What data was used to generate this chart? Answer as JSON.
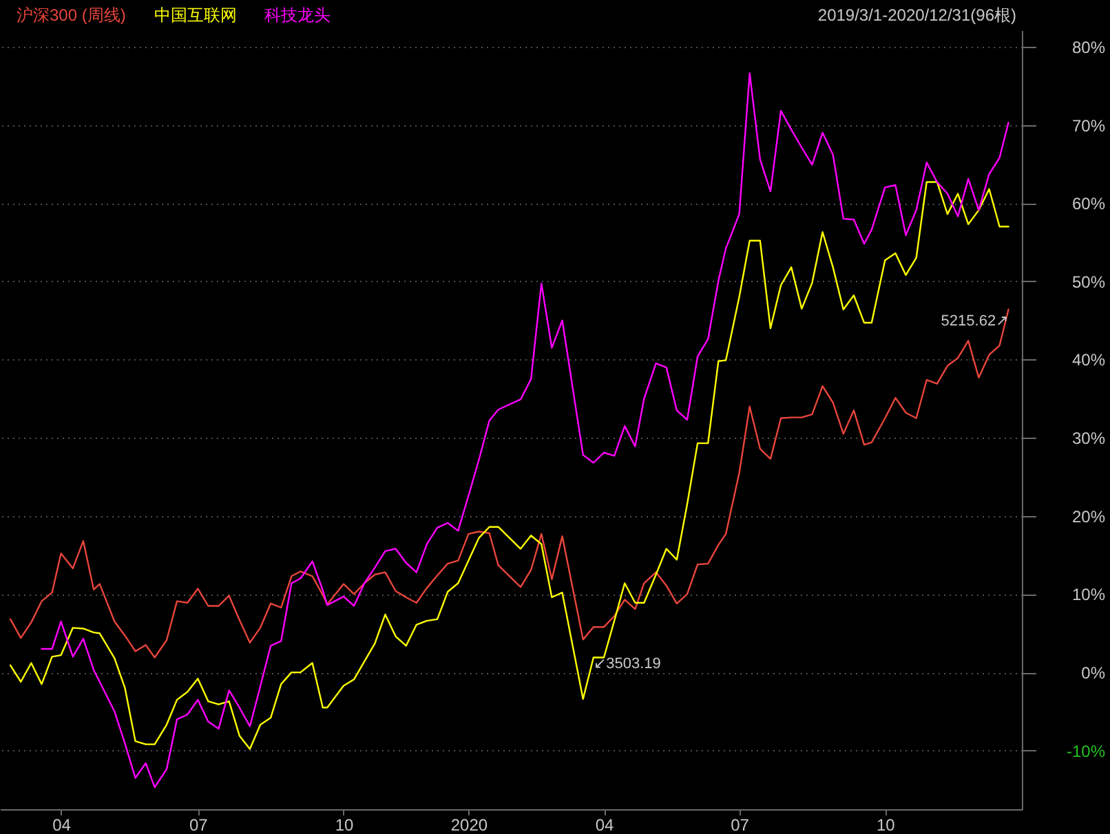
{
  "chart_data": {
    "type": "line",
    "title": "2019/3/1-2020/12/31(96根)",
    "legend": "top left",
    "grid": "y",
    "x": [
      "2019-03-01",
      "2019-03-08",
      "2019-03-15",
      "2019-03-22",
      "2019-03-29",
      "2019-04-04",
      "2019-04-12",
      "2019-04-19",
      "2019-04-26",
      "2019-04-30",
      "2019-05-10",
      "2019-05-17",
      "2019-05-24",
      "2019-05-31",
      "2019-06-06",
      "2019-06-14",
      "2019-06-21",
      "2019-06-28",
      "2019-07-05",
      "2019-07-12",
      "2019-07-19",
      "2019-07-26",
      "2019-08-02",
      "2019-08-09",
      "2019-08-16",
      "2019-08-23",
      "2019-08-30",
      "2019-09-06",
      "2019-09-12",
      "2019-09-20",
      "2019-09-27",
      "2019-09-30",
      "2019-10-11",
      "2019-10-18",
      "2019-10-25",
      "2019-11-01",
      "2019-11-08",
      "2019-11-15",
      "2019-11-22",
      "2019-11-29",
      "2019-12-06",
      "2019-12-13",
      "2019-12-20",
      "2019-12-27",
      "2020-01-03",
      "2020-01-10",
      "2020-01-17",
      "2020-01-23",
      "2020-02-07",
      "2020-02-14",
      "2020-02-21",
      "2020-02-28",
      "2020-03-06",
      "2020-03-13",
      "2020-03-20",
      "2020-03-27",
      "2020-04-03",
      "2020-04-10",
      "2020-04-17",
      "2020-04-24",
      "2020-04-30",
      "2020-05-08",
      "2020-05-15",
      "2020-05-22",
      "2020-05-29",
      "2020-06-05",
      "2020-06-12",
      "2020-06-19",
      "2020-06-24",
      "2020-07-03",
      "2020-07-10",
      "2020-07-17",
      "2020-07-24",
      "2020-07-31",
      "2020-08-07",
      "2020-08-14",
      "2020-08-21",
      "2020-08-28",
      "2020-09-04",
      "2020-09-11",
      "2020-09-18",
      "2020-09-25",
      "2020-09-30",
      "2020-10-09",
      "2020-10-16",
      "2020-10-23",
      "2020-10-30",
      "2020-11-06",
      "2020-11-13",
      "2020-11-20",
      "2020-11-27",
      "2020-12-04",
      "2020-12-11",
      "2020-12-18",
      "2020-12-25",
      "2020-12-31"
    ],
    "xlim": [
      "2019-02-22",
      "2021-01-09"
    ],
    "xticks": [
      {
        "value": "2019-04-04",
        "label": "04"
      },
      {
        "value": "2019-07-05",
        "label": "07"
      },
      {
        "value": "2019-10-11",
        "label": "10"
      },
      {
        "value": "2020-01-03",
        "label": "2020"
      },
      {
        "value": "2020-04-03",
        "label": "04"
      },
      {
        "value": "2020-07-03",
        "label": "07"
      },
      {
        "value": "2020-10-09",
        "label": "10"
      }
    ],
    "ylim": [
      -17.5,
      82.1
    ],
    "yticks": [
      {
        "value": -10,
        "label": "-10%"
      },
      {
        "value": 0,
        "label": "0%"
      },
      {
        "value": 10,
        "label": "10%"
      },
      {
        "value": 20,
        "label": "20%"
      },
      {
        "value": 30,
        "label": "30%"
      },
      {
        "value": 40,
        "label": "40%"
      },
      {
        "value": 50,
        "label": "50%"
      },
      {
        "value": 60,
        "label": "60%"
      },
      {
        "value": 70,
        "label": "70%"
      },
      {
        "value": 80,
        "label": "80%"
      }
    ],
    "series": [
      {
        "name": "沪深300 (周线)",
        "color": "#e8453c",
        "values": [
          6.8,
          4.4,
          6.4,
          9.1,
          10.2,
          15.2,
          13.3,
          16.8,
          10.6,
          11.3,
          6.5,
          4.7,
          2.7,
          3.5,
          1.9,
          4.1,
          9.1,
          8.9,
          10.7,
          8.5,
          8.5,
          9.8,
          6.7,
          3.8,
          5.7,
          8.8,
          8.3,
          12.3,
          12.9,
          12.3,
          9.9,
          8.7,
          11.3,
          10.0,
          11.4,
          12.5,
          12.8,
          10.4,
          9.6,
          8.9,
          10.8,
          12.4,
          13.9,
          14.3,
          17.7,
          18.0,
          17.8,
          13.7,
          10.9,
          13.1,
          17.7,
          11.9,
          17.4,
          10.8,
          4.2,
          5.8,
          5.8,
          7.2,
          9.3,
          8.1,
          11.4,
          12.8,
          11.1,
          8.8,
          10.0,
          13.8,
          13.9,
          16.3,
          17.7,
          25.5,
          34.0,
          28.6,
          27.3,
          32.5,
          32.6,
          32.6,
          33.0,
          36.6,
          34.5,
          30.5,
          33.5,
          29.1,
          29.4,
          32.5,
          35.1,
          33.2,
          32.5,
          37.4,
          36.9,
          39.2,
          40.2,
          42.4,
          37.7,
          40.6,
          41.8,
          46.4
        ]
      },
      {
        "name": "中国互联网",
        "color": "#ffff00",
        "values": [
          0.9,
          -1.2,
          1.2,
          -1.5,
          2.0,
          2.2,
          5.7,
          5.6,
          5.1,
          5.0,
          1.8,
          -2.0,
          -8.8,
          -9.2,
          -9.2,
          -6.7,
          -3.5,
          -2.5,
          -0.8,
          -3.7,
          -4.1,
          -3.7,
          -8.1,
          -9.8,
          -6.7,
          -5.8,
          -1.5,
          0.0,
          0.0,
          1.2,
          -4.5,
          -4.5,
          -1.7,
          -0.9,
          1.4,
          3.7,
          7.4,
          4.6,
          3.4,
          6.1,
          6.6,
          6.8,
          10.3,
          11.4,
          14.3,
          17.2,
          18.6,
          18.6,
          15.8,
          17.5,
          16.4,
          9.6,
          10.2,
          3.4,
          -3.4,
          1.9,
          1.9,
          6.6,
          11.4,
          8.9,
          8.9,
          12.5,
          15.8,
          14.4,
          21.5,
          29.3,
          29.3,
          39.8,
          39.9,
          48.0,
          55.2,
          55.2,
          44.0,
          49.5,
          51.8,
          46.5,
          49.8,
          56.3,
          51.8,
          46.4,
          48.2,
          44.7,
          44.7,
          52.7,
          53.6,
          50.8,
          53.0,
          62.7,
          62.7,
          58.6,
          61.2,
          57.3,
          59.1,
          61.8,
          57.0,
          57.0
        ]
      },
      {
        "name": "科技龙头",
        "color": "#ff00ff",
        "values": [
          null,
          null,
          null,
          3.0,
          3.0,
          6.5,
          2.0,
          4.3,
          0.3,
          -1.2,
          -5.0,
          -9.1,
          -13.5,
          -11.6,
          -14.7,
          -12.4,
          -6.0,
          -5.4,
          -3.5,
          -6.3,
          -7.2,
          -2.3,
          -4.5,
          -6.9,
          -1.8,
          3.4,
          4.0,
          11.4,
          12.0,
          14.2,
          10.5,
          8.6,
          9.7,
          8.5,
          11.4,
          13.4,
          15.5,
          15.8,
          14.0,
          12.8,
          16.4,
          18.5,
          19.1,
          18.1,
          22.6,
          27.2,
          32.2,
          33.6,
          34.9,
          37.5,
          49.7,
          41.5,
          45.0,
          36.4,
          27.8,
          26.8,
          28.1,
          27.7,
          31.5,
          28.9,
          35.0,
          39.5,
          39.0,
          33.5,
          32.3,
          40.4,
          42.6,
          50.1,
          54.2,
          58.6,
          76.6,
          65.6,
          61.5,
          71.8,
          69.4,
          67.1,
          64.9,
          69.0,
          66.2,
          58.0,
          57.9,
          54.8,
          56.6,
          62.0,
          62.3,
          55.9,
          59.1,
          65.2,
          62.7,
          61.2,
          58.3,
          63.1,
          59.1,
          63.7,
          65.8,
          70.3
        ]
      }
    ],
    "annotations": [
      {
        "text": "↙3503.19",
        "x": "2020-03-27",
        "y": 0.2
      },
      {
        "text": "5215.62↗",
        "x": "2020-12-31",
        "y": 45.9
      }
    ]
  }
}
